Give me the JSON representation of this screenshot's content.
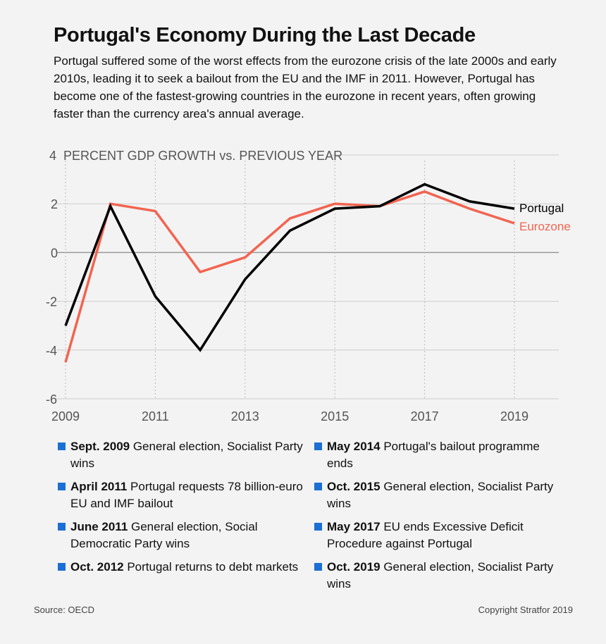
{
  "title": "Portugal's Economy During the Last Decade",
  "subtitle": "Portugal suffered some of the worst effects from the eurozone crisis of the late 2000s and early 2010s, leading it to seek a bailout from the EU and the IMF in 2011. However, Portugal has become one of the fastest-growing countries in the eurozone in recent years, often growing faster than the currency area's annual average.",
  "chart_data": {
    "type": "line",
    "ylabel": "PERCENT GDP GROWTH vs. PREVIOUS YEAR",
    "x": [
      2009,
      2010,
      2011,
      2012,
      2013,
      2014,
      2015,
      2016,
      2017,
      2018,
      2019
    ],
    "xticks": [
      "2009",
      "2011",
      "2013",
      "2015",
      "2017",
      "2019"
    ],
    "yticks": [
      "4",
      "2",
      "0",
      "-2",
      "-4",
      "-6"
    ],
    "ylim": [
      -6,
      4
    ],
    "xlim": [
      2009,
      2020
    ],
    "grid": true,
    "legend_placement": "line-end labels",
    "series": [
      {
        "name": "Portugal",
        "color": "#000000",
        "values": [
          -3.0,
          1.9,
          -1.8,
          -4.0,
          -1.1,
          0.9,
          1.8,
          1.9,
          2.8,
          2.1,
          1.8
        ]
      },
      {
        "name": "Eurozone",
        "color": "#f26450",
        "values": [
          -4.5,
          2.0,
          1.7,
          -0.8,
          -0.2,
          1.4,
          2.0,
          1.9,
          2.5,
          1.8,
          1.2
        ]
      }
    ]
  },
  "events": [
    {
      "date": "Sept. 2009",
      "text": " General election, Socialist Party wins"
    },
    {
      "date": "April 2011",
      "text": " Portugal requests 78 billion-euro EU and IMF bailout"
    },
    {
      "date": "June 2011",
      "text": " General election, Social Democratic Party wins"
    },
    {
      "date": "Oct. 2012",
      "text": " Portugal returns to debt markets"
    },
    {
      "date": "May 2014",
      "text": " Portugal's bailout programme ends"
    },
    {
      "date": "Oct. 2015",
      "text": " General election, Socialist Party wins"
    },
    {
      "date": "May 2017",
      "text": " EU ends Excessive Deficit Procedure against Portugal"
    },
    {
      "date": "Oct. 2019",
      "text": " General election, Socialist Party wins"
    }
  ],
  "bullet_color": "#1c6fd4",
  "source": "Source: OECD",
  "copyright": "Copyright Stratfor 2019"
}
